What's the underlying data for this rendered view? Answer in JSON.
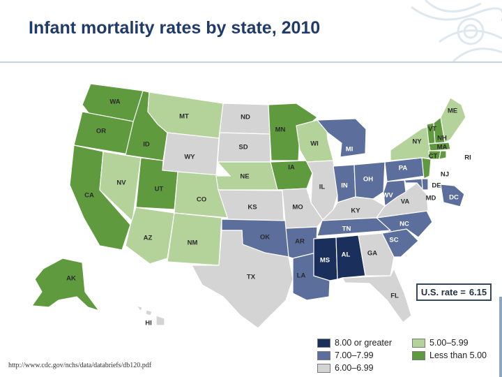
{
  "slide": {
    "title": "Infant mortality rates by state, 2010",
    "source": "http://www.cdc.gov/nchs/data/databriefs/db120.pdf"
  },
  "map": {
    "us_rate_label": "U.S. rate =",
    "us_rate_value": "6.15",
    "categories": {
      "c8": {
        "label": "8.00 or greater",
        "color": "#1b2f5c"
      },
      "c7": {
        "label": "7.00–7.99",
        "color": "#5c6e9c"
      },
      "c6": {
        "label": "6.00–6.99",
        "color": "#d4d4d4"
      },
      "c5": {
        "label": "5.00–5.99",
        "color": "#b4d39a"
      },
      "c4": {
        "label": "Less than 5.00",
        "color": "#5f9a3e"
      }
    },
    "states": [
      {
        "abbr": "WA",
        "category": "c4"
      },
      {
        "abbr": "OR",
        "category": "c4"
      },
      {
        "abbr": "CA",
        "category": "c4"
      },
      {
        "abbr": "NV",
        "category": "c5"
      },
      {
        "abbr": "ID",
        "category": "c4"
      },
      {
        "abbr": "MT",
        "category": "c5"
      },
      {
        "abbr": "WY",
        "category": "c6"
      },
      {
        "abbr": "UT",
        "category": "c4"
      },
      {
        "abbr": "AZ",
        "category": "c5"
      },
      {
        "abbr": "CO",
        "category": "c5"
      },
      {
        "abbr": "NM",
        "category": "c5"
      },
      {
        "abbr": "ND",
        "category": "c6"
      },
      {
        "abbr": "SD",
        "category": "c6"
      },
      {
        "abbr": "NE",
        "category": "c5"
      },
      {
        "abbr": "KS",
        "category": "c6"
      },
      {
        "abbr": "OK",
        "category": "c7"
      },
      {
        "abbr": "TX",
        "category": "c6"
      },
      {
        "abbr": "MN",
        "category": "c4"
      },
      {
        "abbr": "IA",
        "category": "c4"
      },
      {
        "abbr": "MO",
        "category": "c6"
      },
      {
        "abbr": "AR",
        "category": "c7"
      },
      {
        "abbr": "LA",
        "category": "c7"
      },
      {
        "abbr": "WI",
        "category": "c5"
      },
      {
        "abbr": "IL",
        "category": "c6"
      },
      {
        "abbr": "MI",
        "category": "c7"
      },
      {
        "abbr": "IN",
        "category": "c7"
      },
      {
        "abbr": "OH",
        "category": "c7"
      },
      {
        "abbr": "KY",
        "category": "c6"
      },
      {
        "abbr": "TN",
        "category": "c7"
      },
      {
        "abbr": "MS",
        "category": "c8"
      },
      {
        "abbr": "AL",
        "category": "c8"
      },
      {
        "abbr": "GA",
        "category": "c6"
      },
      {
        "abbr": "FL",
        "category": "c6"
      },
      {
        "abbr": "SC",
        "category": "c7"
      },
      {
        "abbr": "NC",
        "category": "c7"
      },
      {
        "abbr": "VA",
        "category": "c6"
      },
      {
        "abbr": "WV",
        "category": "c7"
      },
      {
        "abbr": "PA",
        "category": "c7"
      },
      {
        "abbr": "NY",
        "category": "c5"
      },
      {
        "abbr": "NJ",
        "category": "c4"
      },
      {
        "abbr": "DE",
        "category": "c7"
      },
      {
        "abbr": "MD",
        "category": "c7"
      },
      {
        "abbr": "DC",
        "category": "c7"
      },
      {
        "abbr": "VT",
        "category": "c4"
      },
      {
        "abbr": "NH",
        "category": "c4"
      },
      {
        "abbr": "MA",
        "category": "c4"
      },
      {
        "abbr": "CT",
        "category": "c4"
      },
      {
        "abbr": "RI",
        "category": "c4"
      },
      {
        "abbr": "ME",
        "category": "c5"
      },
      {
        "abbr": "AK",
        "category": "c4"
      },
      {
        "abbr": "HI",
        "category": "c6"
      }
    ]
  }
}
